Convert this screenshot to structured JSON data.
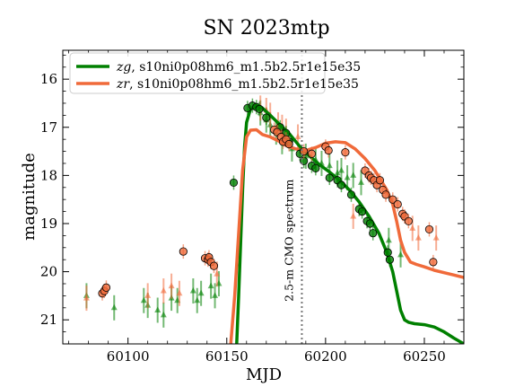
{
  "chart_data": {
    "type": "scatter",
    "title": "SN 2023mtp",
    "xlabel": "MJD",
    "ylabel": "magnitude",
    "xlim": [
      60067,
      60270
    ],
    "ylim": [
      21.5,
      15.4
    ],
    "y_inverted": true,
    "xticks": [
      60100,
      60150,
      60200,
      60250
    ],
    "yticks": [
      16,
      17,
      18,
      19,
      20,
      21
    ],
    "legend_position": "top-left",
    "colors": {
      "zg": "#008000",
      "zr": "#f06a3a"
    },
    "series": [
      {
        "name_prefix": "zg",
        "name_suffix": ", s10ni0p08hm6_m1.5b2.5r1e15e35",
        "kind": "model",
        "color": "#008000",
        "x": [
          60155,
          60156,
          60157,
          60158,
          60159,
          60160,
          60162,
          60165,
          60168,
          60172,
          60177,
          60182,
          60187,
          60192,
          60197,
          60202,
          60207,
          60212,
          60217,
          60222,
          60227,
          60231,
          60234,
          60236,
          60238,
          60240,
          60242,
          60245,
          60250,
          60255,
          60260,
          60265,
          60270
        ],
        "y": [
          21.5,
          20.5,
          19.4,
          18.3,
          17.4,
          16.9,
          16.62,
          16.55,
          16.6,
          16.75,
          16.95,
          17.15,
          17.4,
          17.6,
          17.78,
          17.93,
          18.1,
          18.3,
          18.55,
          18.85,
          19.2,
          19.6,
          20.0,
          20.4,
          20.8,
          21.0,
          21.05,
          21.08,
          21.1,
          21.15,
          21.25,
          21.38,
          21.5
        ]
      },
      {
        "name_prefix": "zr",
        "name_suffix": ", s10ni0p08hm6_m1.5b2.5r1e15e35",
        "kind": "model",
        "color": "#f06a3a",
        "x": [
          60152,
          60154,
          60156,
          60158,
          60160,
          60162,
          60165,
          60168,
          60172,
          60176,
          60180,
          60185,
          60190,
          60195,
          60200,
          60205,
          60210,
          60215,
          60220,
          60225,
          60228,
          60231,
          60234,
          60236,
          60238,
          60240,
          60243,
          60246,
          60250,
          60255,
          60260,
          60265,
          60270
        ],
        "y": [
          21.5,
          20.5,
          19.2,
          17.9,
          17.2,
          17.06,
          17.05,
          17.15,
          17.2,
          17.28,
          17.38,
          17.45,
          17.48,
          17.42,
          17.33,
          17.3,
          17.32,
          17.45,
          17.65,
          17.9,
          18.1,
          18.3,
          18.6,
          18.95,
          19.35,
          19.6,
          19.8,
          19.85,
          19.9,
          19.97,
          20.02,
          20.07,
          20.12
        ]
      },
      {
        "name": "zg",
        "kind": "circles",
        "color": "#008000",
        "x": [
          60153.5,
          60160.5,
          60163,
          60165,
          60166.5,
          60170,
          60177,
          60180,
          60181.5,
          60187,
          60189,
          60193,
          60195,
          60202,
          60206,
          60208,
          60213,
          60217,
          60218.5,
          60221,
          60222.5,
          60224,
          60231.5,
          60232.5
        ],
        "y": [
          18.15,
          16.6,
          16.55,
          16.58,
          16.62,
          16.8,
          17.0,
          17.12,
          17.3,
          17.55,
          17.7,
          17.8,
          17.85,
          18.05,
          18.1,
          18.2,
          18.4,
          18.7,
          18.75,
          18.95,
          19.0,
          19.2,
          19.6,
          19.75
        ]
      },
      {
        "name": "zr",
        "kind": "circles",
        "color": "#f06a3a",
        "x": [
          60087,
          60088,
          60089,
          60128,
          60139,
          60140.5,
          60141,
          60142,
          60143.5,
          60174,
          60175.5,
          60177.5,
          60178.5,
          60180,
          60181.5,
          60189,
          60193,
          60200,
          60201.5,
          60210,
          60220,
          60222,
          60223,
          60224.5,
          60226,
          60227.5,
          60229,
          60230.5,
          60234,
          60236.5,
          60239,
          60240,
          60242,
          60252.5,
          60254.5
        ],
        "y": [
          20.45,
          20.4,
          20.33,
          19.58,
          19.72,
          19.75,
          19.7,
          19.8,
          19.88,
          17.05,
          17.1,
          17.2,
          17.3,
          17.25,
          17.35,
          17.5,
          17.55,
          17.4,
          17.48,
          17.52,
          17.9,
          18.0,
          18.05,
          18.1,
          18.2,
          18.1,
          18.3,
          18.4,
          18.5,
          18.6,
          18.8,
          18.85,
          18.95,
          19.12,
          19.8
        ]
      },
      {
        "name": "zg",
        "kind": "triangles",
        "color": "#008000",
        "x": [
          60079,
          60093,
          60108,
          60110,
          60115,
          60118,
          60122,
          60125,
          60133,
          60135,
          60137,
          60142,
          60144,
          60146,
          60167,
          60170,
          60172,
          60175,
          60178,
          60183,
          60190,
          60195,
          60198,
          60202,
          60206,
          60208,
          60211,
          60214,
          60218,
          60232,
          60238
        ],
        "y": [
          20.5,
          20.75,
          20.6,
          20.7,
          20.8,
          20.9,
          20.55,
          20.6,
          20.4,
          20.6,
          20.45,
          20.3,
          20.5,
          20.25,
          16.7,
          16.85,
          16.95,
          17.1,
          17.3,
          17.45,
          17.6,
          17.68,
          17.75,
          17.8,
          17.95,
          17.9,
          18.05,
          18.0,
          18.15,
          19.35,
          19.65
        ]
      },
      {
        "name": "zr",
        "kind": "triangles",
        "color": "#f06a3a",
        "x": [
          60079,
          60110,
          60118,
          60122,
          60126,
          60145,
          60167,
          60170,
          60172,
          60176,
          60178,
          60180,
          60186,
          60214,
          60244,
          60247,
          60256
        ],
        "y": [
          20.55,
          20.5,
          20.4,
          20.3,
          20.45,
          20.05,
          16.6,
          16.65,
          16.75,
          16.95,
          17.0,
          17.08,
          17.2,
          18.85,
          19.1,
          19.3,
          19.3
        ]
      }
    ],
    "annotation": {
      "text": "2.5-m CMO spectrum",
      "x": 60188,
      "line_style": "dotted",
      "color": "#777777"
    }
  }
}
